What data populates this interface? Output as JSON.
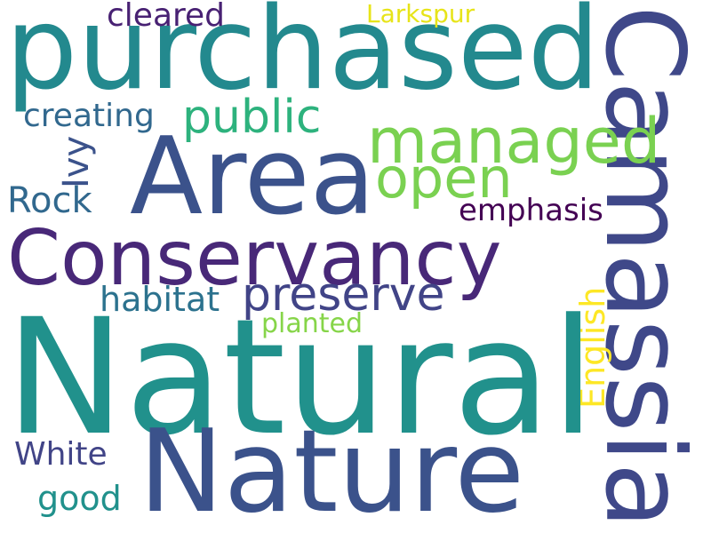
{
  "words": [
    {
      "text": "purchased",
      "color": "#23898e"
    },
    {
      "text": "cleared",
      "color": "#482173"
    },
    {
      "text": "Larkspur",
      "color": "#e7e419"
    },
    {
      "text": "Camassia",
      "color": "#3f4889"
    },
    {
      "text": "public",
      "color": "#2db27d"
    },
    {
      "text": "managed",
      "color": "#7ad151"
    },
    {
      "text": "creating",
      "color": "#31688e"
    },
    {
      "text": "Area",
      "color": "#3b528b"
    },
    {
      "text": "open",
      "color": "#7ad151"
    },
    {
      "text": "Ivy",
      "color": "#3b528b"
    },
    {
      "text": "Rock",
      "color": "#31688e"
    },
    {
      "text": "emphasis",
      "color": "#440154"
    },
    {
      "text": "Conservancy",
      "color": "#482878"
    },
    {
      "text": "preserve",
      "color": "#414487"
    },
    {
      "text": "habitat",
      "color": "#2c728e"
    },
    {
      "text": "planted",
      "color": "#86d549"
    },
    {
      "text": "English",
      "color": "#fde725"
    },
    {
      "text": "Natural",
      "color": "#21918c"
    },
    {
      "text": "Nature",
      "color": "#3b528b"
    },
    {
      "text": "White",
      "color": "#414487"
    },
    {
      "text": "good",
      "color": "#21918c"
    }
  ]
}
